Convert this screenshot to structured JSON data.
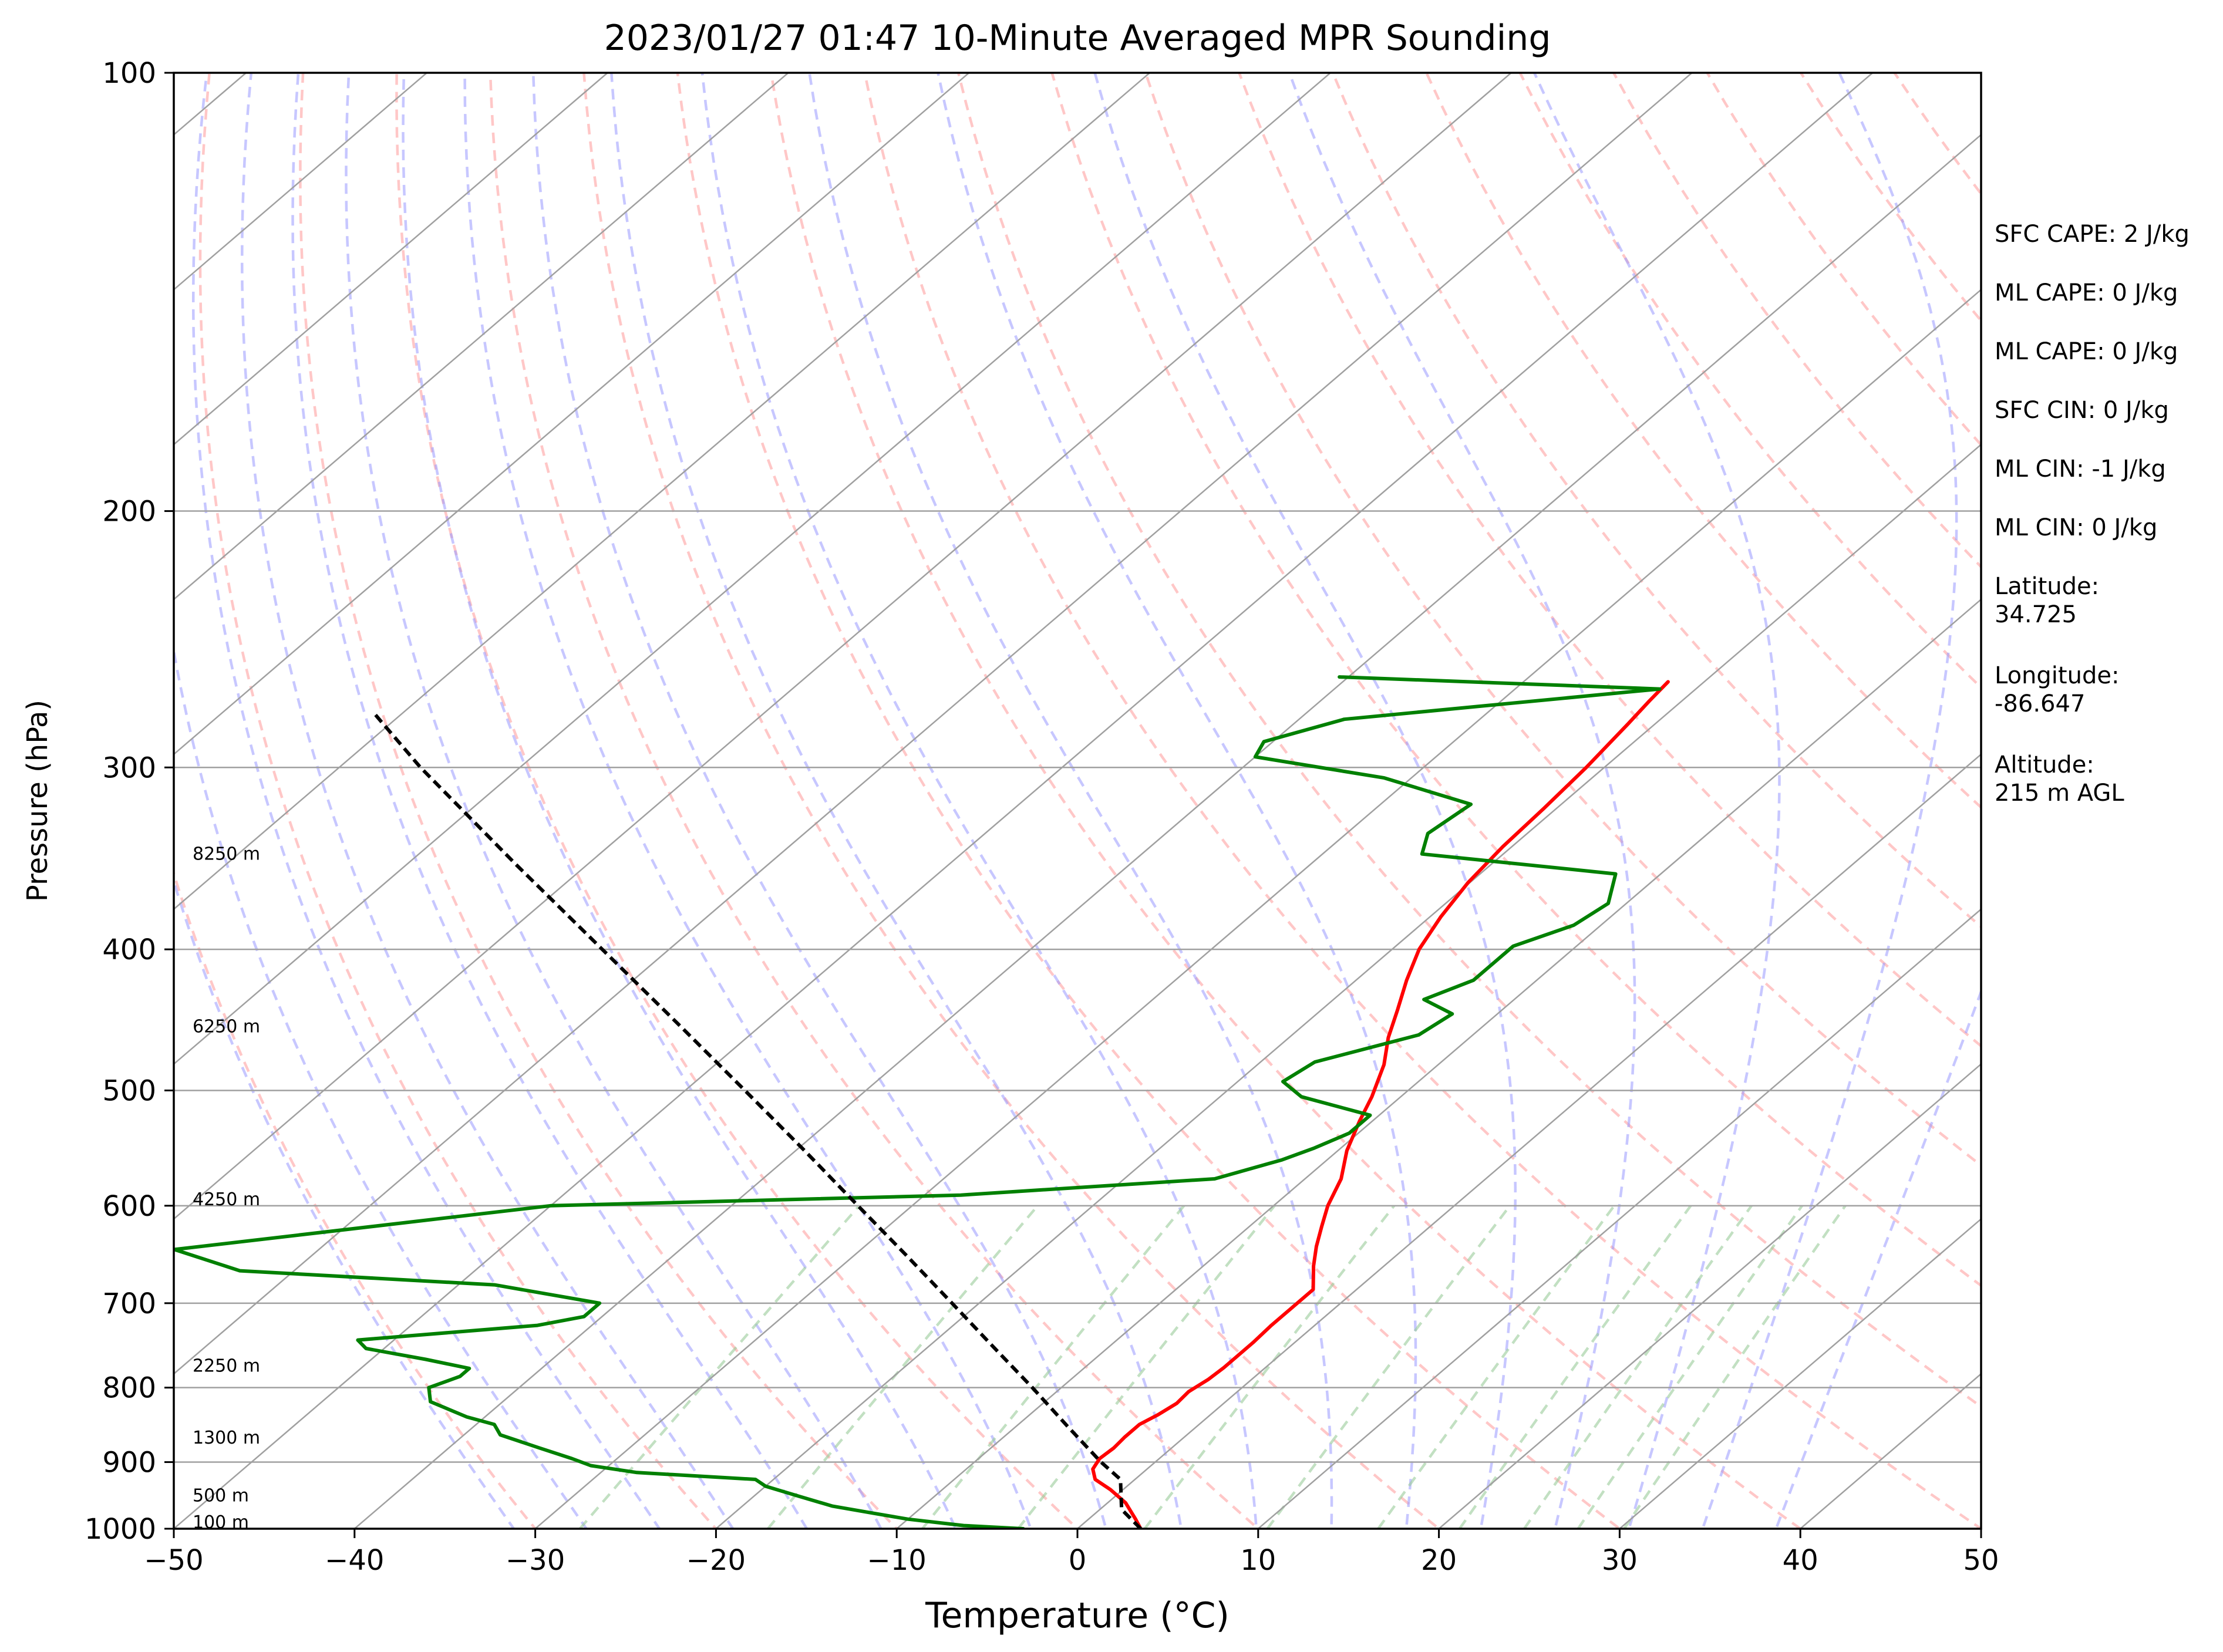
{
  "chart_data": {
    "type": "skew-t",
    "title": "2023/01/27 01:47 10-Minute Averaged MPR Sounding",
    "xlabel": "Temperature (°C)",
    "ylabel": "Pressure (hPa)",
    "xlim": [
      -50,
      50
    ],
    "ylim": [
      1000,
      100
    ],
    "log_y": true,
    "skew_deg_per_decade_per_100": 94,
    "x_ticks": [
      -50,
      -40,
      -30,
      -20,
      -10,
      0,
      10,
      20,
      30,
      40,
      50
    ],
    "x_tick_labels": [
      "−50",
      "−40",
      "−30",
      "−20",
      "−10",
      "0",
      "10",
      "20",
      "30",
      "40",
      "50"
    ],
    "y_ticks": [
      1000,
      900,
      800,
      700,
      600,
      500,
      400,
      300,
      200,
      100
    ],
    "y_tick_labels": [
      "1000",
      "900",
      "800",
      "700",
      "600",
      "500",
      "400",
      "300",
      "200",
      "100"
    ],
    "grid": true,
    "colors": {
      "temperature": "#ff0000",
      "dewpoint": "#008000",
      "parcel": "#000000",
      "isotherm": "#a0a0a0",
      "isobar": "#a0a0a0",
      "dry_adiabat": "#ff9999",
      "moist_adiabat": "#9999ff",
      "mixing_ratio": "#99cc99"
    },
    "series": [
      {
        "key": "temperature",
        "points": [
          [
            1000,
            3.5
          ],
          [
            985,
            2.6
          ],
          [
            960,
            1.0
          ],
          [
            940,
            -0.7
          ],
          [
            925,
            -2.2
          ],
          [
            910,
            -3.0
          ],
          [
            895,
            -3.3
          ],
          [
            880,
            -3.2
          ],
          [
            865,
            -3.3
          ],
          [
            848,
            -3.3
          ],
          [
            835,
            -2.9
          ],
          [
            820,
            -2.6
          ],
          [
            805,
            -2.7
          ],
          [
            790,
            -2.4
          ],
          [
            775,
            -2.3
          ],
          [
            760,
            -2.3
          ],
          [
            745,
            -2.3
          ],
          [
            725,
            -2.4
          ],
          [
            705,
            -2.4
          ],
          [
            685,
            -2.4
          ],
          [
            660,
            -3.9
          ],
          [
            640,
            -5.0
          ],
          [
            620,
            -6.0
          ],
          [
            600,
            -7.0
          ],
          [
            575,
            -8.0
          ],
          [
            550,
            -9.5
          ],
          [
            525,
            -10.7
          ],
          [
            505,
            -11.6
          ],
          [
            480,
            -13.0
          ],
          [
            460,
            -14.5
          ],
          [
            440,
            -15.8
          ],
          [
            420,
            -17.2
          ],
          [
            400,
            -18.5
          ],
          [
            380,
            -19.4
          ],
          [
            360,
            -20.1
          ],
          [
            340,
            -20.5
          ],
          [
            320,
            -20.7
          ],
          [
            300,
            -21.0
          ],
          [
            280,
            -21.5
          ],
          [
            270,
            -21.8
          ],
          [
            262,
            -22.0
          ]
        ]
      },
      {
        "key": "dewpoint",
        "points": [
          [
            1000,
            -3.0
          ],
          [
            995,
            -6.5
          ],
          [
            985,
            -10.0
          ],
          [
            975,
            -12.5
          ],
          [
            965,
            -15.0
          ],
          [
            950,
            -17.5
          ],
          [
            935,
            -20.0
          ],
          [
            925,
            -21.0
          ],
          [
            915,
            -28.0
          ],
          [
            905,
            -31.0
          ],
          [
            895,
            -32.5
          ],
          [
            880,
            -35.0
          ],
          [
            862,
            -38.0
          ],
          [
            848,
            -39.0
          ],
          [
            838,
            -41.0
          ],
          [
            818,
            -44.0
          ],
          [
            800,
            -45.0
          ],
          [
            786,
            -44.0
          ],
          [
            776,
            -44.0
          ],
          [
            765,
            -47.0
          ],
          [
            752,
            -51.0
          ],
          [
            742,
            -52.0
          ],
          [
            725,
            -43.0
          ],
          [
            715,
            -41.0
          ],
          [
            700,
            -41.0
          ],
          [
            680,
            -48.0
          ],
          [
            665,
            -63.0
          ],
          [
            643,
            -68.0
          ],
          [
            600,
            -50.0
          ],
          [
            590,
            -28.0
          ],
          [
            575,
            -15.0
          ],
          [
            558,
            -12.5
          ],
          [
            548,
            -11.5
          ],
          [
            535,
            -10.5
          ],
          [
            520,
            -10.5
          ],
          [
            505,
            -15.5
          ],
          [
            493,
            -17.5
          ],
          [
            478,
            -17.0
          ],
          [
            458,
            -13.0
          ],
          [
            443,
            -12.5
          ],
          [
            433,
            -15.0
          ],
          [
            420,
            -13.5
          ],
          [
            398,
            -13.5
          ],
          [
            385,
            -11.5
          ],
          [
            372,
            -11.0
          ],
          [
            355,
            -12.5
          ],
          [
            344,
            -24.5
          ],
          [
            333,
            -25.5
          ],
          [
            318,
            -25.0
          ],
          [
            305,
            -31.5
          ],
          [
            295,
            -40.0
          ],
          [
            288,
            -40.5
          ],
          [
            278,
            -37.5
          ],
          [
            265,
            -22.0
          ],
          [
            260,
            -40.5
          ]
        ]
      },
      {
        "key": "parcel",
        "points": [
          [
            1000,
            3.5
          ],
          [
            970,
            1.2
          ],
          [
            925,
            -0.8
          ],
          [
            900,
            -3.0
          ],
          [
            850,
            -7.2
          ],
          [
            800,
            -11.6
          ],
          [
            750,
            -16.4
          ],
          [
            700,
            -21.5
          ],
          [
            650,
            -27.0
          ],
          [
            600,
            -33.0
          ],
          [
            550,
            -39.5
          ],
          [
            500,
            -46.7
          ],
          [
            450,
            -54.7
          ],
          [
            400,
            -63.7
          ],
          [
            350,
            -73.9
          ],
          [
            300,
            -85.5
          ],
          [
            276,
            -91.4
          ]
        ]
      }
    ],
    "height_labels": [
      {
        "text": "100 m",
        "p": 990
      },
      {
        "text": "500 m",
        "p": 949
      },
      {
        "text": "1300 m",
        "p": 866
      },
      {
        "text": "2250 m",
        "p": 773
      },
      {
        "text": "4250 m",
        "p": 594
      },
      {
        "text": "6250 m",
        "p": 452
      },
      {
        "text": "8250 m",
        "p": 344
      }
    ],
    "annotations": [
      {
        "lines": [
          "SFC CAPE: 2 J/kg"
        ]
      },
      {
        "lines": [
          "ML CAPE: 0 J/kg"
        ]
      },
      {
        "lines": [
          "ML CAPE: 0 J/kg"
        ]
      },
      {
        "lines": [
          "SFC CIN: 0 J/kg"
        ]
      },
      {
        "lines": [
          "ML CIN: -1 J/kg"
        ]
      },
      {
        "lines": [
          "ML CIN: 0 J/kg"
        ]
      },
      {
        "lines": [
          "Latitude:",
          "34.725"
        ]
      },
      {
        "lines": [
          "Longitude:",
          "-86.647"
        ]
      },
      {
        "lines": [
          "Altitude:",
          "215 m AGL"
        ]
      }
    ]
  }
}
